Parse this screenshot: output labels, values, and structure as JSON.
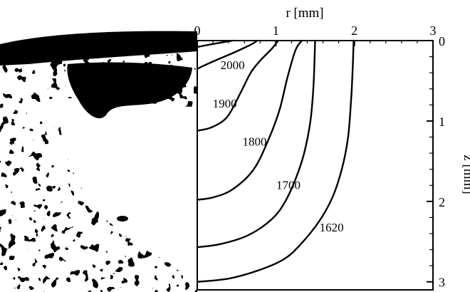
{
  "chart_data": {
    "type": "contour",
    "title": "",
    "xlabel": "r [mm]",
    "ylabel": "z [mm]",
    "xlim": [
      0,
      3
    ],
    "ylim": [
      0,
      3.1
    ],
    "x_axis_position": "top",
    "y_axis_position": "right",
    "y_inverted": true,
    "x_ticks": [
      0,
      1,
      2,
      3
    ],
    "y_ticks": [
      0,
      1,
      2,
      3
    ],
    "grid": false,
    "left_panel": "black-and-white micrograph",
    "series": [
      {
        "name": "2000",
        "values": [
          [
            0,
            0.08
          ],
          [
            0.16,
            0.05
          ],
          [
            0.33,
            0.02
          ],
          [
            0.45,
            0.0
          ]
        ]
      },
      {
        "name": "1900",
        "values": [
          [
            0,
            0.35
          ],
          [
            0.2,
            0.26
          ],
          [
            0.44,
            0.16
          ],
          [
            0.62,
            0.08
          ],
          [
            0.72,
            0.03
          ],
          [
            0.76,
            0.0
          ]
        ]
      },
      {
        "name": "1800",
        "values": [
          [
            0,
            1.12
          ],
          [
            0.18,
            1.08
          ],
          [
            0.38,
            0.95
          ],
          [
            0.55,
            0.65
          ],
          [
            0.68,
            0.4
          ],
          [
            0.8,
            0.25
          ],
          [
            0.95,
            0.1
          ],
          [
            1.03,
            0.0
          ]
        ]
      },
      {
        "name": "1700",
        "values": [
          [
            0,
            1.98
          ],
          [
            0.2,
            1.95
          ],
          [
            0.45,
            1.85
          ],
          [
            0.72,
            1.6
          ],
          [
            0.92,
            1.2
          ],
          [
            1.05,
            0.85
          ],
          [
            1.15,
            0.45
          ],
          [
            1.25,
            0.12
          ],
          [
            1.33,
            0.0
          ]
        ]
      },
      {
        "name": "1620",
        "values": [
          [
            0,
            2.57
          ],
          [
            0.3,
            2.53
          ],
          [
            0.65,
            2.42
          ],
          [
            0.95,
            2.22
          ],
          [
            1.12,
            2.0
          ],
          [
            1.26,
            1.7
          ],
          [
            1.36,
            1.4
          ],
          [
            1.44,
            1.0
          ],
          [
            1.48,
            0.55
          ],
          [
            1.5,
            0.0
          ]
        ]
      },
      {
        "name": "",
        "values": [
          [
            0,
            3.0
          ],
          [
            0.4,
            2.96
          ],
          [
            0.8,
            2.85
          ],
          [
            1.1,
            2.72
          ],
          [
            1.3,
            2.55
          ],
          [
            1.55,
            2.25
          ],
          [
            1.72,
            1.95
          ],
          [
            1.84,
            1.6
          ],
          [
            1.92,
            1.2
          ],
          [
            1.96,
            0.7
          ],
          [
            1.98,
            0.3
          ],
          [
            1.99,
            0.0
          ]
        ]
      }
    ],
    "annotations": [
      {
        "text": "2000",
        "x": 0.45,
        "y": 0.32
      },
      {
        "text": "1900",
        "x": 0.35,
        "y": 0.8
      },
      {
        "text": "1800",
        "x": 0.73,
        "y": 1.27
      },
      {
        "text": "1700",
        "x": 1.16,
        "y": 1.81
      },
      {
        "text": "1620",
        "x": 1.71,
        "y": 2.34
      }
    ]
  }
}
